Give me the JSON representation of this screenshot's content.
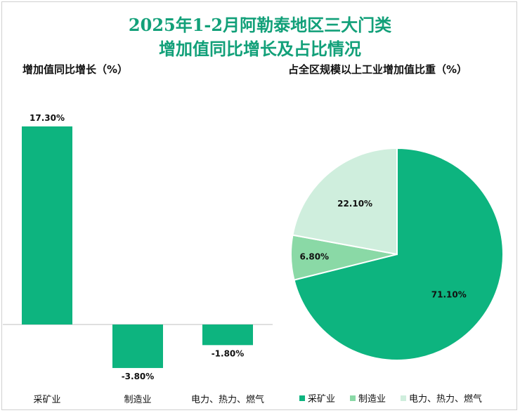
{
  "title_line1": "2025年1-2月阿勒泰地区三大门类",
  "title_line2": "增加值同比增长及占比情况",
  "chart_data": [
    {
      "type": "bar",
      "title": "增加值同比增长（%）",
      "categories": [
        "采矿业",
        "制造业",
        "电力、热力、燃气"
      ],
      "values": [
        17.3,
        -3.8,
        -1.8
      ],
      "data_labels": [
        "17.30%",
        "-3.80%",
        "-1.80%"
      ],
      "color": "#0db47f"
    },
    {
      "type": "pie",
      "title": "占全区规模以上工业增加值比重（%）",
      "labels": [
        "采矿业",
        "制造业",
        "电力、热力、燃气"
      ],
      "values": [
        71.1,
        6.8,
        22.1
      ],
      "data_labels": [
        "71.10%",
        "6.80%",
        "22.10%"
      ],
      "colors": [
        "#0db47f",
        "#8ad9a6",
        "#cfeedd"
      ],
      "legend": "bottom"
    }
  ]
}
